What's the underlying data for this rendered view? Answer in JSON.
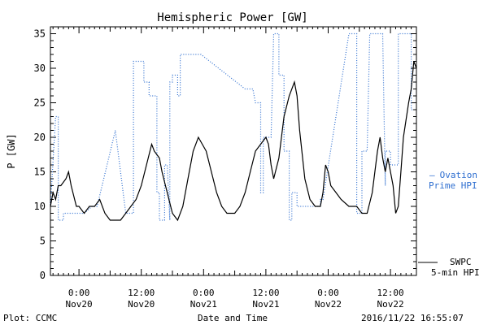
{
  "chart_data": {
    "type": "line",
    "title": "Hemispheric Power [GW]",
    "ylabel": "P [GW]",
    "xlabel": "Date and Time",
    "ylim": [
      0,
      36
    ],
    "xlim": [
      "2016-11-19T18:30",
      "2016-11-22T17:00"
    ],
    "yticks": [
      0,
      5,
      10,
      15,
      20,
      25,
      30,
      35
    ],
    "xticks": [
      {
        "t": "2016-11-20T00:00",
        "time": "0:00",
        "date": "Nov20"
      },
      {
        "t": "2016-11-20T12:00",
        "time": "12:00",
        "date": "Nov20"
      },
      {
        "t": "2016-11-21T00:00",
        "time": "0:00",
        "date": "Nov21"
      },
      {
        "t": "2016-11-21T12:00",
        "time": "12:00",
        "date": "Nov21"
      },
      {
        "t": "2016-11-22T00:00",
        "time": "0:00",
        "date": "Nov22"
      },
      {
        "t": "2016-11-22T12:00",
        "time": "12:00",
        "date": "Nov22"
      }
    ],
    "series": [
      {
        "name": "Ovation Prime HPI",
        "color": "#2f6fd0",
        "style": "dotted",
        "points": [
          [
            "2016-11-19T18:30",
            10
          ],
          [
            "2016-11-19T19:30",
            23
          ],
          [
            "2016-11-19T20:00",
            23
          ],
          [
            "2016-11-19T20:00",
            8
          ],
          [
            "2016-11-19T21:00",
            8
          ],
          [
            "2016-11-19T21:00",
            9
          ],
          [
            "2016-11-20T01:00",
            9
          ],
          [
            "2016-11-20T02:30",
            10
          ],
          [
            "2016-11-20T03:30",
            10
          ],
          [
            "2016-11-20T07:00",
            21
          ],
          [
            "2016-11-20T09:00",
            9
          ],
          [
            "2016-11-20T10:30",
            9
          ],
          [
            "2016-11-20T10:30",
            31
          ],
          [
            "2016-11-20T12:30",
            31
          ],
          [
            "2016-11-20T12:30",
            28
          ],
          [
            "2016-11-20T13:30",
            28
          ],
          [
            "2016-11-20T13:30",
            26
          ],
          [
            "2016-11-20T15:00",
            26
          ],
          [
            "2016-11-20T15:00",
            12
          ],
          [
            "2016-11-20T15:30",
            12
          ],
          [
            "2016-11-20T15:30",
            8
          ],
          [
            "2016-11-20T16:30",
            8
          ],
          [
            "2016-11-20T16:30",
            16
          ],
          [
            "2016-11-20T17:00",
            16
          ],
          [
            "2016-11-20T17:30",
            8
          ],
          [
            "2016-11-20T17:30",
            28
          ],
          [
            "2016-11-20T18:00",
            28
          ],
          [
            "2016-11-20T18:00",
            29
          ],
          [
            "2016-11-20T19:00",
            29
          ],
          [
            "2016-11-20T19:00",
            26
          ],
          [
            "2016-11-20T19:30",
            26
          ],
          [
            "2016-11-20T19:30",
            32
          ],
          [
            "2016-11-20T23:30",
            32
          ],
          [
            "2016-11-21T08:00",
            27
          ],
          [
            "2016-11-21T09:30",
            27
          ],
          [
            "2016-11-21T10:00",
            25
          ],
          [
            "2016-11-21T11:00",
            25
          ],
          [
            "2016-11-21T11:00",
            12
          ],
          [
            "2016-11-21T11:30",
            12
          ],
          [
            "2016-11-21T11:30",
            20
          ],
          [
            "2016-11-21T13:00",
            20
          ],
          [
            "2016-11-21T13:30",
            35
          ],
          [
            "2016-11-21T14:30",
            35
          ],
          [
            "2016-11-21T14:30",
            29
          ],
          [
            "2016-11-21T15:30",
            29
          ],
          [
            "2016-11-21T15:30",
            18
          ],
          [
            "2016-11-21T16:30",
            18
          ],
          [
            "2016-11-21T16:30",
            8
          ],
          [
            "2016-11-21T17:00",
            8
          ],
          [
            "2016-11-21T17:00",
            12
          ],
          [
            "2016-11-21T18:00",
            12
          ],
          [
            "2016-11-21T18:00",
            10
          ],
          [
            "2016-11-21T22:30",
            10
          ],
          [
            "2016-11-21T22:30",
            11
          ],
          [
            "2016-11-21T23:00",
            11
          ],
          [
            "2016-11-22T04:00",
            35
          ],
          [
            "2016-11-22T05:30",
            35
          ],
          [
            "2016-11-22T05:30",
            9
          ],
          [
            "2016-11-22T06:30",
            9
          ],
          [
            "2016-11-22T06:30",
            18
          ],
          [
            "2016-11-22T07:30",
            18
          ],
          [
            "2016-11-22T08:00",
            35
          ],
          [
            "2016-11-22T10:30",
            35
          ],
          [
            "2016-11-22T11:00",
            13
          ],
          [
            "2016-11-22T11:00",
            18
          ],
          [
            "2016-11-22T12:00",
            18
          ],
          [
            "2016-11-22T12:00",
            16
          ],
          [
            "2016-11-22T13:30",
            16
          ],
          [
            "2016-11-22T13:30",
            35
          ],
          [
            "2016-11-22T16:00",
            35
          ],
          [
            "2016-11-22T16:00",
            24
          ],
          [
            "2016-11-22T16:30",
            24
          ]
        ]
      },
      {
        "name": "SWPC 5-min HPI",
        "color": "#000000",
        "style": "solid",
        "points": [
          [
            "2016-11-19T18:30",
            10
          ],
          [
            "2016-11-19T19:00",
            12
          ],
          [
            "2016-11-19T19:30",
            11
          ],
          [
            "2016-11-19T20:00",
            13
          ],
          [
            "2016-11-19T20:30",
            13
          ],
          [
            "2016-11-19T21:30",
            14
          ],
          [
            "2016-11-19T22:00",
            15
          ],
          [
            "2016-11-19T22:30",
            13
          ],
          [
            "2016-11-19T23:30",
            10
          ],
          [
            "2016-11-20T00:00",
            10
          ],
          [
            "2016-11-20T01:00",
            9
          ],
          [
            "2016-11-20T02:00",
            10
          ],
          [
            "2016-11-20T03:00",
            10
          ],
          [
            "2016-11-20T04:00",
            11
          ],
          [
            "2016-11-20T05:00",
            9
          ],
          [
            "2016-11-20T06:00",
            8
          ],
          [
            "2016-11-20T08:00",
            8
          ],
          [
            "2016-11-20T09:00",
            9
          ],
          [
            "2016-11-20T10:00",
            10
          ],
          [
            "2016-11-20T11:00",
            11
          ],
          [
            "2016-11-20T12:00",
            13
          ],
          [
            "2016-11-20T13:00",
            16
          ],
          [
            "2016-11-20T14:00",
            19
          ],
          [
            "2016-11-20T14:30",
            18
          ],
          [
            "2016-11-20T15:30",
            17
          ],
          [
            "2016-11-20T16:00",
            15
          ],
          [
            "2016-11-20T17:00",
            12
          ],
          [
            "2016-11-20T18:00",
            9
          ],
          [
            "2016-11-20T19:00",
            8
          ],
          [
            "2016-11-20T20:00",
            10
          ],
          [
            "2016-11-20T21:00",
            14
          ],
          [
            "2016-11-20T22:00",
            18
          ],
          [
            "2016-11-20T23:00",
            20
          ],
          [
            "2016-11-21T00:30",
            18
          ],
          [
            "2016-11-21T01:30",
            15
          ],
          [
            "2016-11-21T02:30",
            12
          ],
          [
            "2016-11-21T03:30",
            10
          ],
          [
            "2016-11-21T04:30",
            9
          ],
          [
            "2016-11-21T06:00",
            9
          ],
          [
            "2016-11-21T07:00",
            10
          ],
          [
            "2016-11-21T08:00",
            12
          ],
          [
            "2016-11-21T09:00",
            15
          ],
          [
            "2016-11-21T10:00",
            18
          ],
          [
            "2016-11-21T11:00",
            19
          ],
          [
            "2016-11-21T12:00",
            20
          ],
          [
            "2016-11-21T12:30",
            19
          ],
          [
            "2016-11-21T13:00",
            16
          ],
          [
            "2016-11-21T13:30",
            14
          ],
          [
            "2016-11-21T14:30",
            17
          ],
          [
            "2016-11-21T15:30",
            23
          ],
          [
            "2016-11-21T16:30",
            26
          ],
          [
            "2016-11-21T17:30",
            28
          ],
          [
            "2016-11-21T18:00",
            26
          ],
          [
            "2016-11-21T18:30",
            21
          ],
          [
            "2016-11-21T19:30",
            14
          ],
          [
            "2016-11-21T20:30",
            11
          ],
          [
            "2016-11-21T21:30",
            10
          ],
          [
            "2016-11-21T22:30",
            10
          ],
          [
            "2016-11-21T23:00",
            12
          ],
          [
            "2016-11-21T23:30",
            16
          ],
          [
            "2016-11-22T00:00",
            15
          ],
          [
            "2016-11-22T00:30",
            13
          ],
          [
            "2016-11-22T01:30",
            12
          ],
          [
            "2016-11-22T02:30",
            11
          ],
          [
            "2016-11-22T04:00",
            10
          ],
          [
            "2016-11-22T05:30",
            10
          ],
          [
            "2016-11-22T06:30",
            9
          ],
          [
            "2016-11-22T07:30",
            9
          ],
          [
            "2016-11-22T08:30",
            12
          ],
          [
            "2016-11-22T09:30",
            18
          ],
          [
            "2016-11-22T10:00",
            20
          ],
          [
            "2016-11-22T10:30",
            17
          ],
          [
            "2016-11-22T11:00",
            15
          ],
          [
            "2016-11-22T11:30",
            17
          ],
          [
            "2016-11-22T12:30",
            13
          ],
          [
            "2016-11-22T13:00",
            9
          ],
          [
            "2016-11-22T13:30",
            10
          ],
          [
            "2016-11-22T14:00",
            15
          ],
          [
            "2016-11-22T14:30",
            20
          ],
          [
            "2016-11-22T15:30",
            25
          ],
          [
            "2016-11-22T16:00",
            27
          ],
          [
            "2016-11-22T16:30",
            31
          ],
          [
            "2016-11-22T17:00",
            30
          ]
        ]
      }
    ],
    "legend": {
      "ovation": {
        "dash": "—",
        "line1": "Ovation",
        "line2": "Prime HPI"
      },
      "swpc": {
        "line1": "SWPC",
        "line2": "5-min HPI"
      }
    },
    "grid": false
  },
  "footer": {
    "left": "Plot: CCMC",
    "right": "2016/11/22 16:55:07"
  }
}
